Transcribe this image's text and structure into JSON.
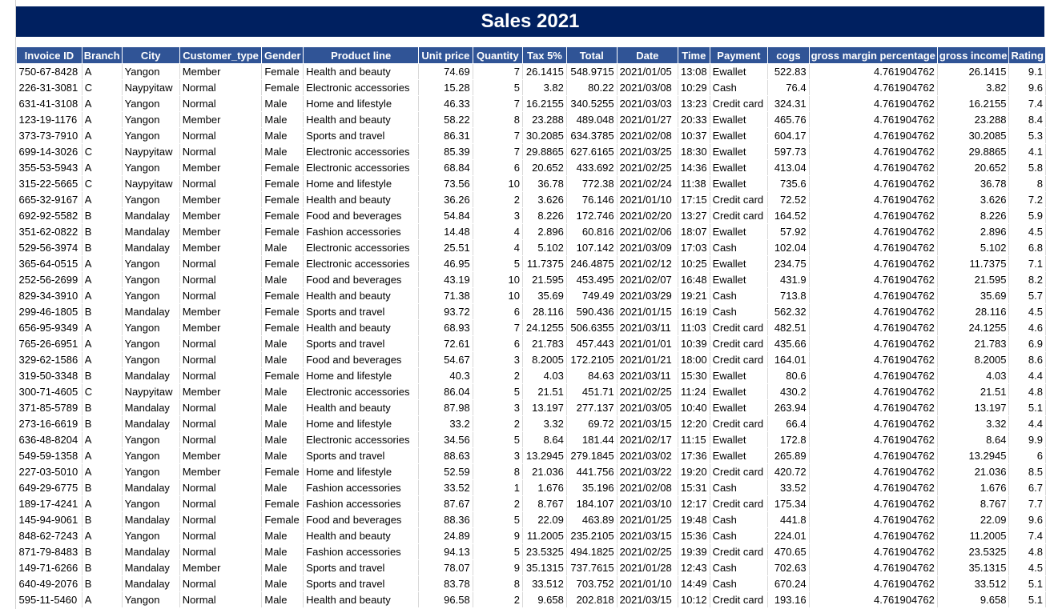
{
  "sheet": {
    "title": "Sales 2021",
    "columns": [
      "Invoice ID",
      "Branch",
      "City",
      "Customer_type",
      "Gender",
      "Product line",
      "Unit price",
      "Quantity",
      "Tax 5%",
      "Total",
      "Date",
      "Time",
      "Payment",
      "cogs",
      "gross margin percentage",
      "gross income",
      "Rating"
    ],
    "rows": [
      [
        "750-67-8428",
        "A",
        "Yangon",
        "Member",
        "Female",
        "Health and beauty",
        "74.69",
        "7",
        "26.1415",
        "548.9715",
        "2021/01/05",
        "13:08",
        "Ewallet",
        "522.83",
        "4.761904762",
        "26.1415",
        "9.1"
      ],
      [
        "226-31-3081",
        "C",
        "Naypyitaw",
        "Normal",
        "Female",
        "Electronic accessories",
        "15.28",
        "5",
        "3.82",
        "80.22",
        "2021/03/08",
        "10:29",
        "Cash",
        "76.4",
        "4.761904762",
        "3.82",
        "9.6"
      ],
      [
        "631-41-3108",
        "A",
        "Yangon",
        "Normal",
        "Male",
        "Home and lifestyle",
        "46.33",
        "7",
        "16.2155",
        "340.5255",
        "2021/03/03",
        "13:23",
        "Credit card",
        "324.31",
        "4.761904762",
        "16.2155",
        "7.4"
      ],
      [
        "123-19-1176",
        "A",
        "Yangon",
        "Member",
        "Male",
        "Health and beauty",
        "58.22",
        "8",
        "23.288",
        "489.048",
        "2021/01/27",
        "20:33",
        "Ewallet",
        "465.76",
        "4.761904762",
        "23.288",
        "8.4"
      ],
      [
        "373-73-7910",
        "A",
        "Yangon",
        "Normal",
        "Male",
        "Sports and travel",
        "86.31",
        "7",
        "30.2085",
        "634.3785",
        "2021/02/08",
        "10:37",
        "Ewallet",
        "604.17",
        "4.761904762",
        "30.2085",
        "5.3"
      ],
      [
        "699-14-3026",
        "C",
        "Naypyitaw",
        "Normal",
        "Male",
        "Electronic accessories",
        "85.39",
        "7",
        "29.8865",
        "627.6165",
        "2021/03/25",
        "18:30",
        "Ewallet",
        "597.73",
        "4.761904762",
        "29.8865",
        "4.1"
      ],
      [
        "355-53-5943",
        "A",
        "Yangon",
        "Member",
        "Female",
        "Electronic accessories",
        "68.84",
        "6",
        "20.652",
        "433.692",
        "2021/02/25",
        "14:36",
        "Ewallet",
        "413.04",
        "4.761904762",
        "20.652",
        "5.8"
      ],
      [
        "315-22-5665",
        "C",
        "Naypyitaw",
        "Normal",
        "Female",
        "Home and lifestyle",
        "73.56",
        "10",
        "36.78",
        "772.38",
        "2021/02/24",
        "11:38",
        "Ewallet",
        "735.6",
        "4.761904762",
        "36.78",
        "8"
      ],
      [
        "665-32-9167",
        "A",
        "Yangon",
        "Member",
        "Female",
        "Health and beauty",
        "36.26",
        "2",
        "3.626",
        "76.146",
        "2021/01/10",
        "17:15",
        "Credit card",
        "72.52",
        "4.761904762",
        "3.626",
        "7.2"
      ],
      [
        "692-92-5582",
        "B",
        "Mandalay",
        "Member",
        "Female",
        "Food and beverages",
        "54.84",
        "3",
        "8.226",
        "172.746",
        "2021/02/20",
        "13:27",
        "Credit card",
        "164.52",
        "4.761904762",
        "8.226",
        "5.9"
      ],
      [
        "351-62-0822",
        "B",
        "Mandalay",
        "Member",
        "Female",
        "Fashion accessories",
        "14.48",
        "4",
        "2.896",
        "60.816",
        "2021/02/06",
        "18:07",
        "Ewallet",
        "57.92",
        "4.761904762",
        "2.896",
        "4.5"
      ],
      [
        "529-56-3974",
        "B",
        "Mandalay",
        "Member",
        "Male",
        "Electronic accessories",
        "25.51",
        "4",
        "5.102",
        "107.142",
        "2021/03/09",
        "17:03",
        "Cash",
        "102.04",
        "4.761904762",
        "5.102",
        "6.8"
      ],
      [
        "365-64-0515",
        "A",
        "Yangon",
        "Normal",
        "Female",
        "Electronic accessories",
        "46.95",
        "5",
        "11.7375",
        "246.4875",
        "2021/02/12",
        "10:25",
        "Ewallet",
        "234.75",
        "4.761904762",
        "11.7375",
        "7.1"
      ],
      [
        "252-56-2699",
        "A",
        "Yangon",
        "Normal",
        "Male",
        "Food and beverages",
        "43.19",
        "10",
        "21.595",
        "453.495",
        "2021/02/07",
        "16:48",
        "Ewallet",
        "431.9",
        "4.761904762",
        "21.595",
        "8.2"
      ],
      [
        "829-34-3910",
        "A",
        "Yangon",
        "Normal",
        "Female",
        "Health and beauty",
        "71.38",
        "10",
        "35.69",
        "749.49",
        "2021/03/29",
        "19:21",
        "Cash",
        "713.8",
        "4.761904762",
        "35.69",
        "5.7"
      ],
      [
        "299-46-1805",
        "B",
        "Mandalay",
        "Member",
        "Female",
        "Sports and travel",
        "93.72",
        "6",
        "28.116",
        "590.436",
        "2021/01/15",
        "16:19",
        "Cash",
        "562.32",
        "4.761904762",
        "28.116",
        "4.5"
      ],
      [
        "656-95-9349",
        "A",
        "Yangon",
        "Member",
        "Female",
        "Health and beauty",
        "68.93",
        "7",
        "24.1255",
        "506.6355",
        "2021/03/11",
        "11:03",
        "Credit card",
        "482.51",
        "4.761904762",
        "24.1255",
        "4.6"
      ],
      [
        "765-26-6951",
        "A",
        "Yangon",
        "Normal",
        "Male",
        "Sports and travel",
        "72.61",
        "6",
        "21.783",
        "457.443",
        "2021/01/01",
        "10:39",
        "Credit card",
        "435.66",
        "4.761904762",
        "21.783",
        "6.9"
      ],
      [
        "329-62-1586",
        "A",
        "Yangon",
        "Normal",
        "Male",
        "Food and beverages",
        "54.67",
        "3",
        "8.2005",
        "172.2105",
        "2021/01/21",
        "18:00",
        "Credit card",
        "164.01",
        "4.761904762",
        "8.2005",
        "8.6"
      ],
      [
        "319-50-3348",
        "B",
        "Mandalay",
        "Normal",
        "Female",
        "Home and lifestyle",
        "40.3",
        "2",
        "4.03",
        "84.63",
        "2021/03/11",
        "15:30",
        "Ewallet",
        "80.6",
        "4.761904762",
        "4.03",
        "4.4"
      ],
      [
        "300-71-4605",
        "C",
        "Naypyitaw",
        "Member",
        "Male",
        "Electronic accessories",
        "86.04",
        "5",
        "21.51",
        "451.71",
        "2021/02/25",
        "11:24",
        "Ewallet",
        "430.2",
        "4.761904762",
        "21.51",
        "4.8"
      ],
      [
        "371-85-5789",
        "B",
        "Mandalay",
        "Normal",
        "Male",
        "Health and beauty",
        "87.98",
        "3",
        "13.197",
        "277.137",
        "2021/03/05",
        "10:40",
        "Ewallet",
        "263.94",
        "4.761904762",
        "13.197",
        "5.1"
      ],
      [
        "273-16-6619",
        "B",
        "Mandalay",
        "Normal",
        "Male",
        "Home and lifestyle",
        "33.2",
        "2",
        "3.32",
        "69.72",
        "2021/03/15",
        "12:20",
        "Credit card",
        "66.4",
        "4.761904762",
        "3.32",
        "4.4"
      ],
      [
        "636-48-8204",
        "A",
        "Yangon",
        "Normal",
        "Male",
        "Electronic accessories",
        "34.56",
        "5",
        "8.64",
        "181.44",
        "2021/02/17",
        "11:15",
        "Ewallet",
        "172.8",
        "4.761904762",
        "8.64",
        "9.9"
      ],
      [
        "549-59-1358",
        "A",
        "Yangon",
        "Member",
        "Male",
        "Sports and travel",
        "88.63",
        "3",
        "13.2945",
        "279.1845",
        "2021/03/02",
        "17:36",
        "Ewallet",
        "265.89",
        "4.761904762",
        "13.2945",
        "6"
      ],
      [
        "227-03-5010",
        "A",
        "Yangon",
        "Member",
        "Female",
        "Home and lifestyle",
        "52.59",
        "8",
        "21.036",
        "441.756",
        "2021/03/22",
        "19:20",
        "Credit card",
        "420.72",
        "4.761904762",
        "21.036",
        "8.5"
      ],
      [
        "649-29-6775",
        "B",
        "Mandalay",
        "Normal",
        "Male",
        "Fashion accessories",
        "33.52",
        "1",
        "1.676",
        "35.196",
        "2021/02/08",
        "15:31",
        "Cash",
        "33.52",
        "4.761904762",
        "1.676",
        "6.7"
      ],
      [
        "189-17-4241",
        "A",
        "Yangon",
        "Normal",
        "Female",
        "Fashion accessories",
        "87.67",
        "2",
        "8.767",
        "184.107",
        "2021/03/10",
        "12:17",
        "Credit card",
        "175.34",
        "4.761904762",
        "8.767",
        "7.7"
      ],
      [
        "145-94-9061",
        "B",
        "Mandalay",
        "Normal",
        "Female",
        "Food and beverages",
        "88.36",
        "5",
        "22.09",
        "463.89",
        "2021/01/25",
        "19:48",
        "Cash",
        "441.8",
        "4.761904762",
        "22.09",
        "9.6"
      ],
      [
        "848-62-7243",
        "A",
        "Yangon",
        "Normal",
        "Male",
        "Health and beauty",
        "24.89",
        "9",
        "11.2005",
        "235.2105",
        "2021/03/15",
        "15:36",
        "Cash",
        "224.01",
        "4.761904762",
        "11.2005",
        "7.4"
      ],
      [
        "871-79-8483",
        "B",
        "Mandalay",
        "Normal",
        "Male",
        "Fashion accessories",
        "94.13",
        "5",
        "23.5325",
        "494.1825",
        "2021/02/25",
        "19:39",
        "Credit card",
        "470.65",
        "4.761904762",
        "23.5325",
        "4.8"
      ],
      [
        "149-71-6266",
        "B",
        "Mandalay",
        "Member",
        "Male",
        "Sports and travel",
        "78.07",
        "9",
        "35.1315",
        "737.7615",
        "2021/01/28",
        "12:43",
        "Cash",
        "702.63",
        "4.761904762",
        "35.1315",
        "4.5"
      ],
      [
        "640-49-2076",
        "B",
        "Mandalay",
        "Normal",
        "Male",
        "Sports and travel",
        "83.78",
        "8",
        "33.512",
        "703.752",
        "2021/01/10",
        "14:49",
        "Cash",
        "670.24",
        "4.761904762",
        "33.512",
        "5.1"
      ],
      [
        "595-11-5460",
        "A",
        "Yangon",
        "Normal",
        "Male",
        "Health and beauty",
        "96.58",
        "2",
        "9.658",
        "202.818",
        "2021/03/15",
        "10:12",
        "Credit card",
        "193.16",
        "4.761904762",
        "9.658",
        "5.1"
      ]
    ]
  },
  "colors": {
    "title_bg": "#002060",
    "header_bg": "#305496",
    "header_text": "#ffffff"
  }
}
